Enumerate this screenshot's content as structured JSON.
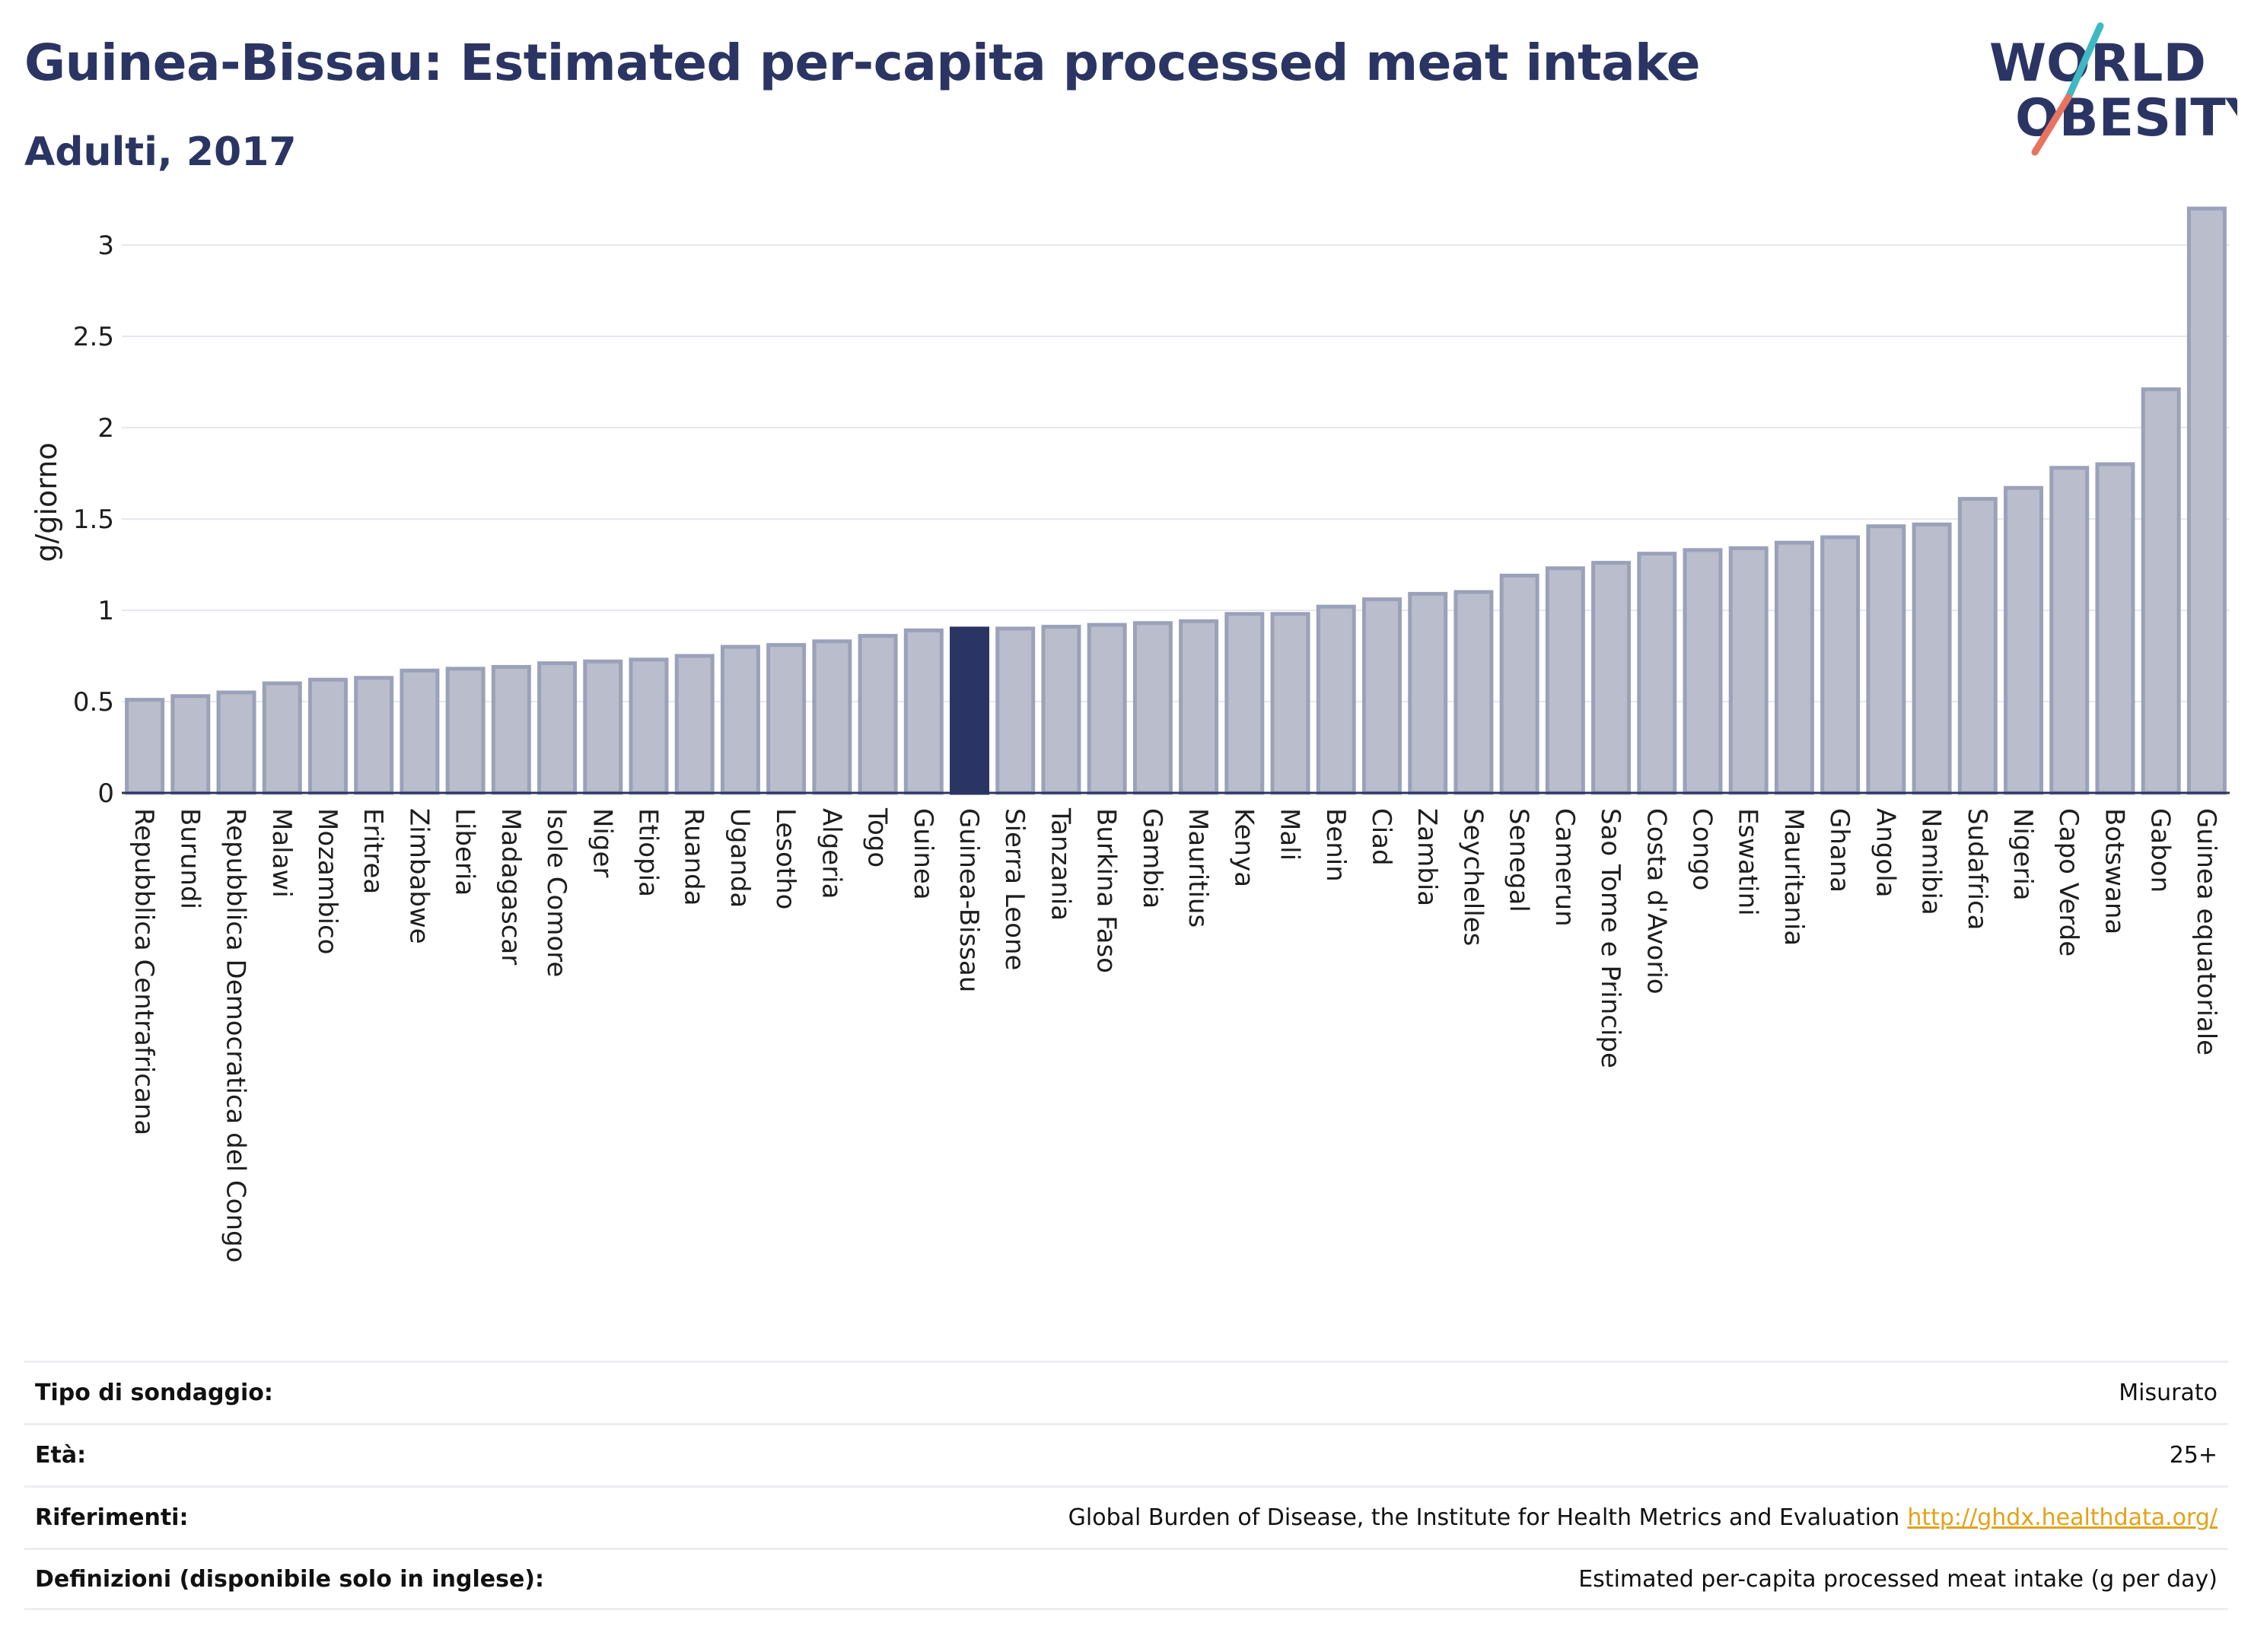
{
  "header": {
    "title": "Guinea-Bissau: Estimated per-capita processed meat intake",
    "subtitle": "Adulti, 2017"
  },
  "logo": {
    "line1": "WORLD",
    "line2": "OBESITY",
    "accent_teal": "#3fb8c4",
    "accent_coral": "#e8735f",
    "text_color": "#2b3564"
  },
  "colors": {
    "bar": "#b9bdcc",
    "bar_stroke": "#9ba1b8",
    "highlight": "#2b3564",
    "grid": "#e6e8ee",
    "axis": "#2b3564"
  },
  "chart_data": {
    "type": "bar",
    "ylabel": "g/giorno",
    "ylim": [
      0,
      3.3
    ],
    "yticks": [
      0,
      0.5,
      1,
      1.5,
      2,
      2.5,
      3
    ],
    "ytick_labels": [
      "0",
      "0.5",
      "1",
      "1.5",
      "2",
      "2.5",
      "3"
    ],
    "grid": true,
    "highlight": "Guinea-Bissau",
    "categories": [
      "Repubblica Centrafricana",
      "Burundi",
      "Repubblica Democratica del Congo",
      "Malawi",
      "Mozambico",
      "Eritrea",
      "Zimbabwe",
      "Liberia",
      "Madagascar",
      "Isole Comore",
      "Niger",
      "Etiopia",
      "Ruanda",
      "Uganda",
      "Lesotho",
      "Algeria",
      "Togo",
      "Guinea",
      "Guinea-Bissau",
      "Sierra Leone",
      "Tanzania",
      "Burkina Faso",
      "Gambia",
      "Mauritius",
      "Kenya",
      "Mali",
      "Benin",
      "Ciad",
      "Zambia",
      "Seychelles",
      "Senegal",
      "Camerun",
      "Sao Tome e Principe",
      "Costa d'Avorio",
      "Congo",
      "Eswatini",
      "Mauritania",
      "Ghana",
      "Angola",
      "Namibia",
      "Sudafrica",
      "Nigeria",
      "Capo Verde",
      "Botswana",
      "Gabon",
      "Guinea equatoriale"
    ],
    "values": [
      0.51,
      0.53,
      0.55,
      0.6,
      0.62,
      0.63,
      0.67,
      0.68,
      0.69,
      0.71,
      0.72,
      0.73,
      0.75,
      0.8,
      0.81,
      0.83,
      0.86,
      0.89,
      0.9,
      0.9,
      0.91,
      0.92,
      0.93,
      0.94,
      0.98,
      0.98,
      1.02,
      1.06,
      1.09,
      1.1,
      1.19,
      1.23,
      1.26,
      1.31,
      1.33,
      1.34,
      1.37,
      1.4,
      1.46,
      1.47,
      1.61,
      1.67,
      1.78,
      1.8,
      2.21,
      3.2
    ]
  },
  "info": {
    "rows": [
      {
        "key": "Tipo di sondaggio:",
        "value": "Misurato"
      },
      {
        "key": "Età:",
        "value": "25+"
      },
      {
        "key": "Riferimenti:",
        "value": "Global Burden of Disease, the Institute for Health Metrics and Evaluation",
        "link": "http://ghdx.healthdata.org/"
      },
      {
        "key": "Definizioni (disponibile solo in inglese):",
        "value": "Estimated per-capita processed meat intake (g per day)"
      }
    ]
  }
}
